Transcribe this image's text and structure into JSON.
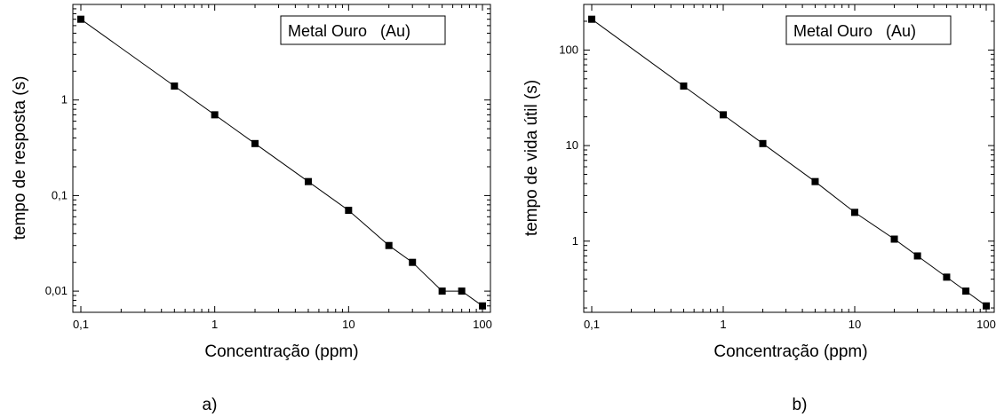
{
  "chart_data": [
    {
      "type": "scatter",
      "caption": "a)",
      "xlabel": "Concentração (ppm)",
      "ylabel": "tempo de resposta (s)",
      "xscale": "log",
      "yscale": "log",
      "xlim": [
        0.1,
        100
      ],
      "ylim": [
        0.006,
        10
      ],
      "xticks": [
        {
          "value": 0.1,
          "label": "0,1"
        },
        {
          "value": 1,
          "label": "1"
        },
        {
          "value": 10,
          "label": "10"
        },
        {
          "value": 100,
          "label": "100"
        }
      ],
      "yticks": [
        {
          "value": 0.01,
          "label": "0,01"
        },
        {
          "value": 0.1,
          "label": "0,1"
        },
        {
          "value": 1,
          "label": "1"
        }
      ],
      "legend": {
        "text": "Metal Ouro   (Au)",
        "placement": "top-right"
      },
      "grid": false,
      "series": [
        {
          "style": "line+square-markers",
          "points": [
            [
              0.1,
              7
            ],
            [
              0.5,
              1.4
            ],
            [
              1,
              0.7
            ],
            [
              2,
              0.35
            ],
            [
              5,
              0.14
            ],
            [
              10,
              0.07
            ],
            [
              20,
              0.03
            ],
            [
              30,
              0.02
            ],
            [
              50,
              0.01
            ],
            [
              70,
              0.01
            ],
            [
              100,
              0.007
            ]
          ]
        }
      ]
    },
    {
      "type": "scatter",
      "caption": "b)",
      "xlabel": "Concentração (ppm)",
      "ylabel": "tempo de vida útil (s)",
      "xscale": "log",
      "yscale": "log",
      "xlim": [
        0.1,
        100
      ],
      "ylim": [
        0.18,
        300
      ],
      "xticks": [
        {
          "value": 0.1,
          "label": "0,1"
        },
        {
          "value": 1,
          "label": "1"
        },
        {
          "value": 10,
          "label": "10"
        },
        {
          "value": 100,
          "label": "100"
        }
      ],
      "yticks": [
        {
          "value": 1,
          "label": "1"
        },
        {
          "value": 10,
          "label": "10"
        },
        {
          "value": 100,
          "label": "100"
        }
      ],
      "legend": {
        "text": "Metal Ouro   (Au)",
        "placement": "top-right"
      },
      "grid": false,
      "series": [
        {
          "style": "line+square-markers",
          "points": [
            [
              0.1,
              210
            ],
            [
              0.5,
              42
            ],
            [
              1,
              21
            ],
            [
              2,
              10.5
            ],
            [
              5,
              4.2
            ],
            [
              10,
              2.0
            ],
            [
              20,
              1.05
            ],
            [
              30,
              0.7
            ],
            [
              50,
              0.42
            ],
            [
              70,
              0.3
            ],
            [
              100,
              0.21
            ]
          ]
        }
      ]
    }
  ]
}
